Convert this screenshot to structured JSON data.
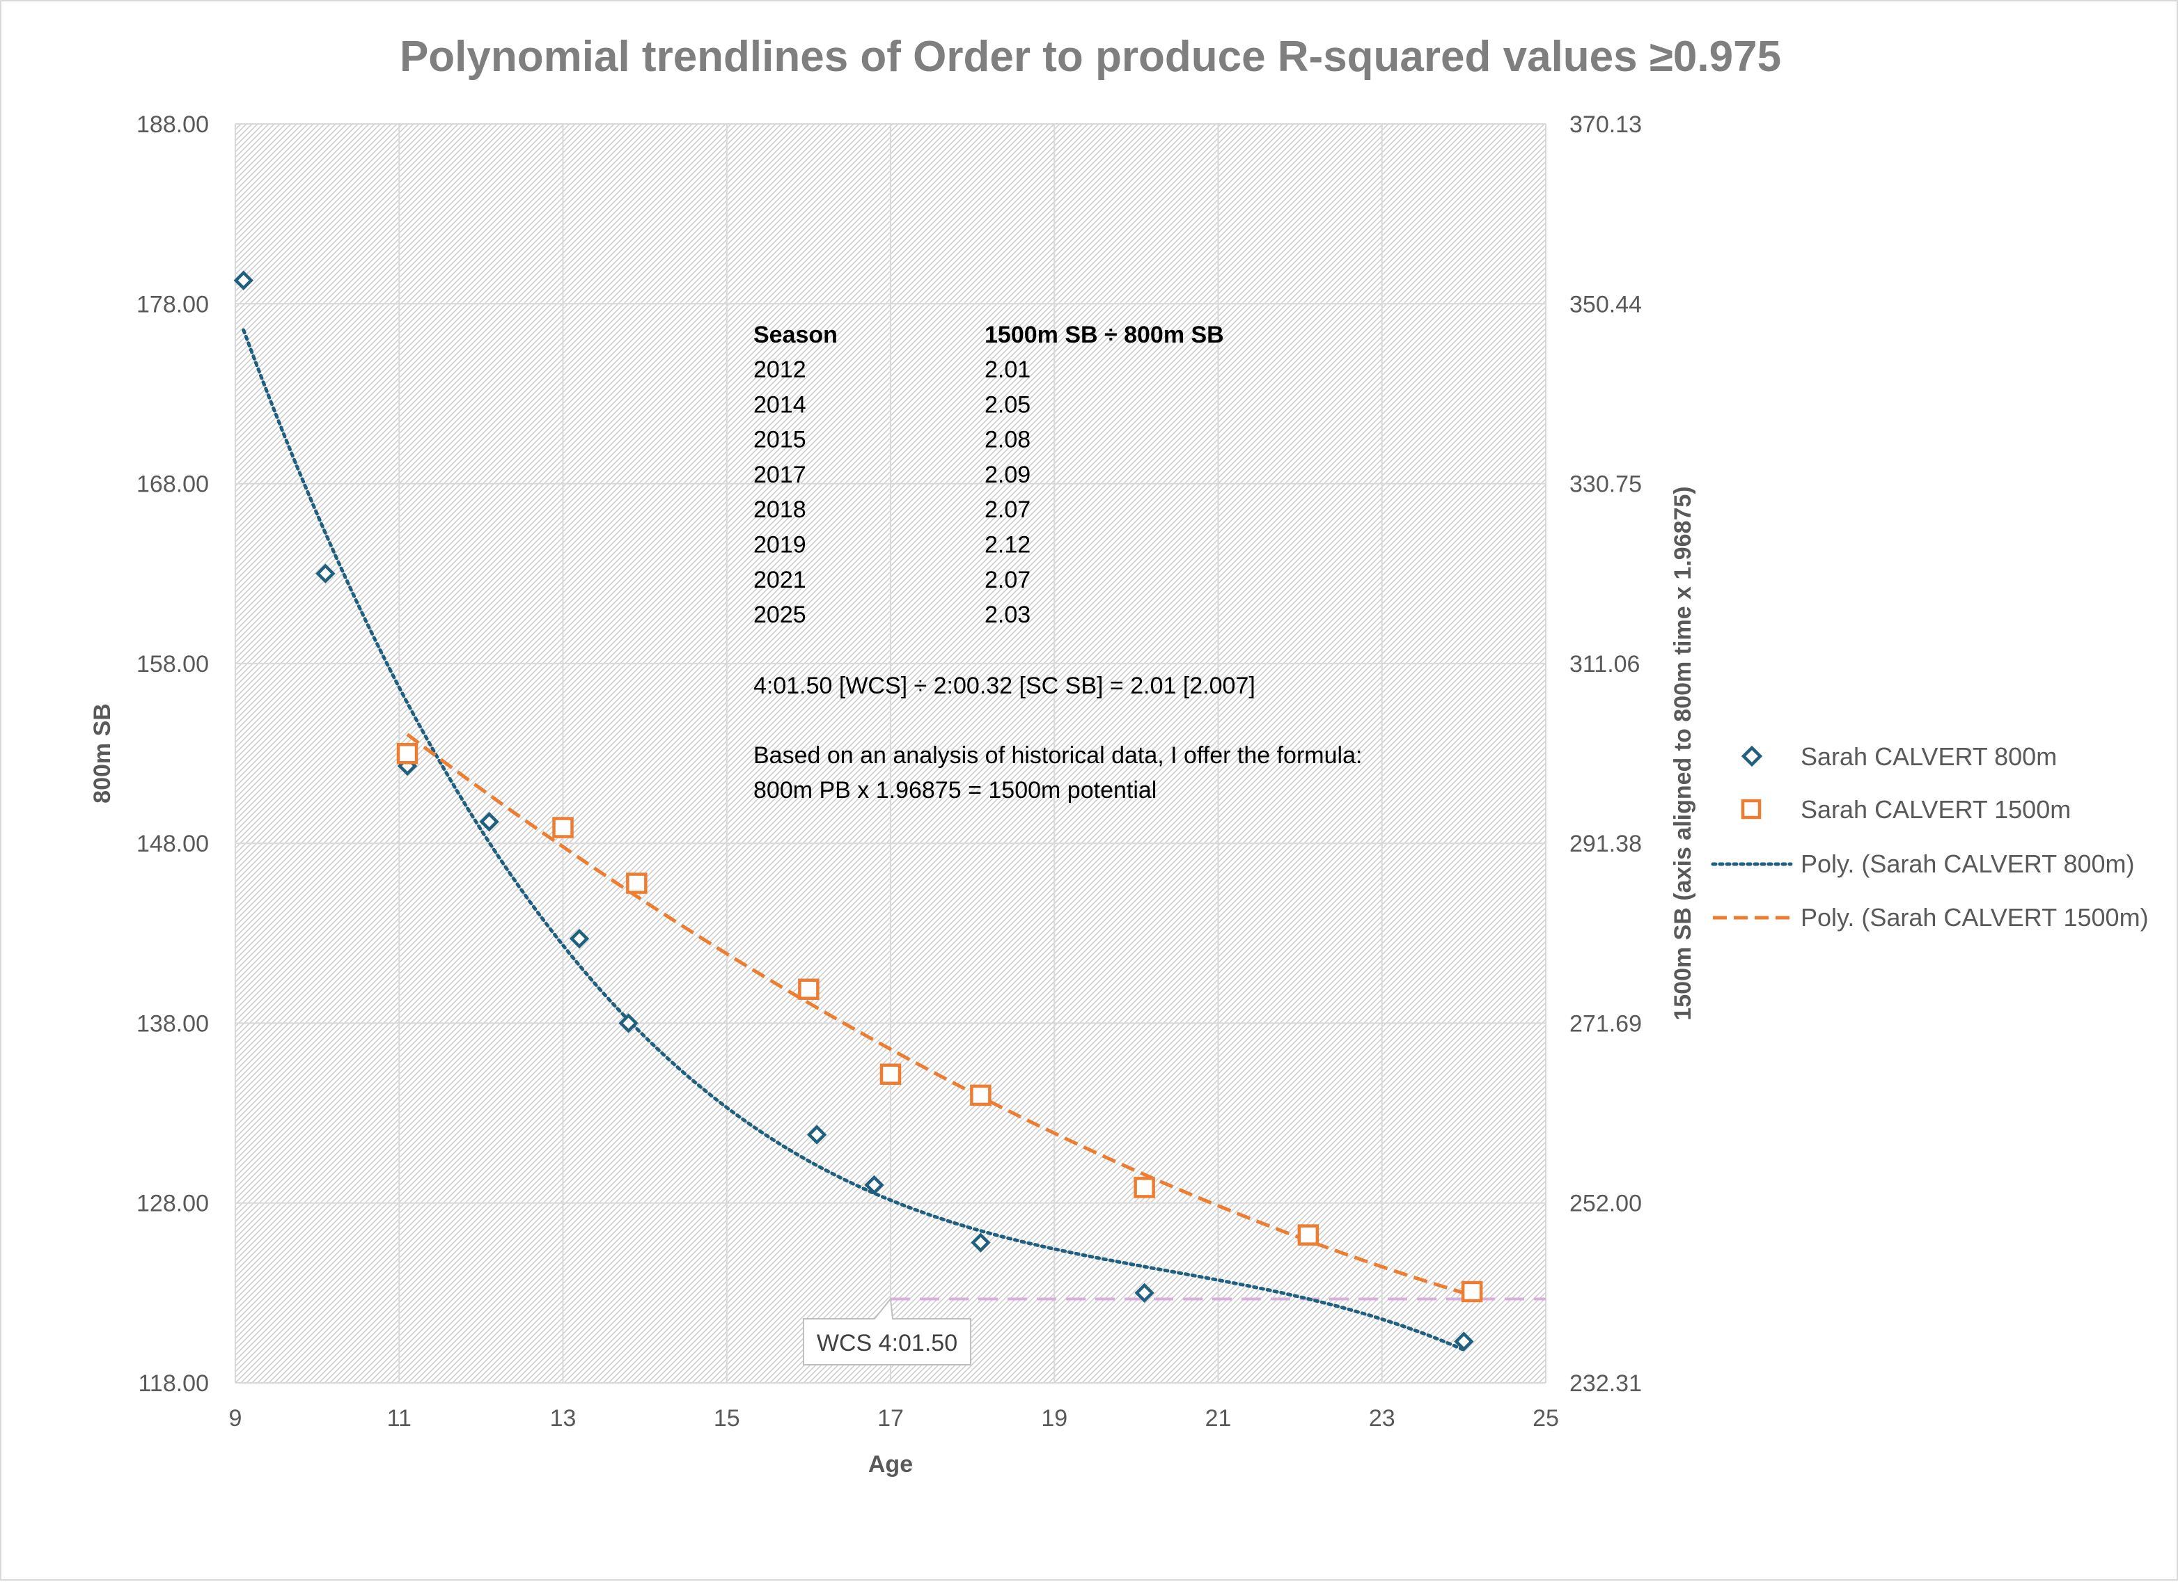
{
  "colors": {
    "series800": "#1F5F7F",
    "series1500": "#ED7D31",
    "trend800": "#1F5F7F",
    "trend1500": "#ED7D31",
    "wcs_line": "#D8AEDD",
    "grid": "#d9d9d9",
    "text": "#595959",
    "title": "#7f7f7f"
  },
  "chart_data": {
    "type": "scatter",
    "title": "Polynomial trendlines of Order to produce R-squared values ≥0.975",
    "xlabel": "Age",
    "ylabel": "800m SB",
    "y2label": "1500m SB (axis aligned to 800m time x 1.96875)",
    "xlim": [
      9,
      25
    ],
    "ylim": [
      118,
      188
    ],
    "y2lim": [
      232.31,
      370.13
    ],
    "x_ticks": [
      "9",
      "11",
      "13",
      "15",
      "17",
      "19",
      "21",
      "23",
      "25"
    ],
    "y_ticks": [
      "118.00",
      "128.00",
      "138.00",
      "148.00",
      "158.00",
      "168.00",
      "178.00",
      "188.00"
    ],
    "y2_ticks": [
      "232.31",
      "252.00",
      "271.69",
      "291.38",
      "311.06",
      "330.75",
      "350.44",
      "370.13"
    ],
    "series": [
      {
        "name": "Sarah CALVERT 800m",
        "marker": "diamond",
        "axis": "primary",
        "points": [
          [
            9.1,
            179.3
          ],
          [
            10.1,
            163.0
          ],
          [
            11.1,
            152.3
          ],
          [
            12.1,
            149.2
          ],
          [
            13.2,
            142.7
          ],
          [
            13.8,
            138.0
          ],
          [
            16.1,
            131.8
          ],
          [
            16.8,
            129.0
          ],
          [
            18.1,
            125.8
          ],
          [
            20.1,
            123.0
          ],
          [
            24.0,
            120.3
          ]
        ]
      },
      {
        "name": "Sarah CALVERT 1500m",
        "marker": "square",
        "axis": "secondary",
        "points": [
          [
            11.1,
            301.2
          ],
          [
            13.0,
            293.1
          ],
          [
            13.9,
            287.0
          ],
          [
            16.0,
            275.4
          ],
          [
            17.0,
            266.1
          ],
          [
            18.1,
            263.8
          ],
          [
            20.1,
            253.7
          ],
          [
            22.1,
            248.5
          ],
          [
            24.1,
            242.3
          ]
        ]
      }
    ],
    "trendlines": [
      {
        "name": "Poly. (Sarah CALVERT 800m)",
        "of": "Sarah CALVERT 800m",
        "style": "dotted",
        "x_range": [
          9.1,
          24.0
        ]
      },
      {
        "name": "Poly. (Sarah CALVERT 1500m)",
        "of": "Sarah CALVERT 1500m",
        "style": "dashed",
        "x_range": [
          11.1,
          24.1
        ]
      }
    ],
    "wcs_reference": {
      "label": "WCS 4:01.50",
      "seconds": 241.5,
      "x_from": 17,
      "x_to": 25
    },
    "legend_position": "right"
  },
  "annotation": {
    "table_headers": [
      "Season",
      "1500m SB ÷ 800m SB"
    ],
    "table_rows": [
      [
        "2012",
        "2.01"
      ],
      [
        "2014",
        "2.05"
      ],
      [
        "2015",
        "2.08"
      ],
      [
        "2017",
        "2.09"
      ],
      [
        "2018",
        "2.07"
      ],
      [
        "2019",
        "2.12"
      ],
      [
        "2021",
        "2.07"
      ],
      [
        "2025",
        "2.03"
      ]
    ],
    "formula_line": "4:01.50 [WCS] ÷ 2:00.32 [SC SB] = 2.01 [2.007]",
    "note_line1": "Based on an analysis of historical data, I offer the formula:",
    "note_line2": "800m PB x 1.96875 = 1500m potential"
  },
  "legend": {
    "items": [
      "Sarah CALVERT 800m",
      "Sarah CALVERT 1500m",
      "Poly. (Sarah CALVERT 800m)",
      "Poly. (Sarah CALVERT 1500m)"
    ]
  }
}
